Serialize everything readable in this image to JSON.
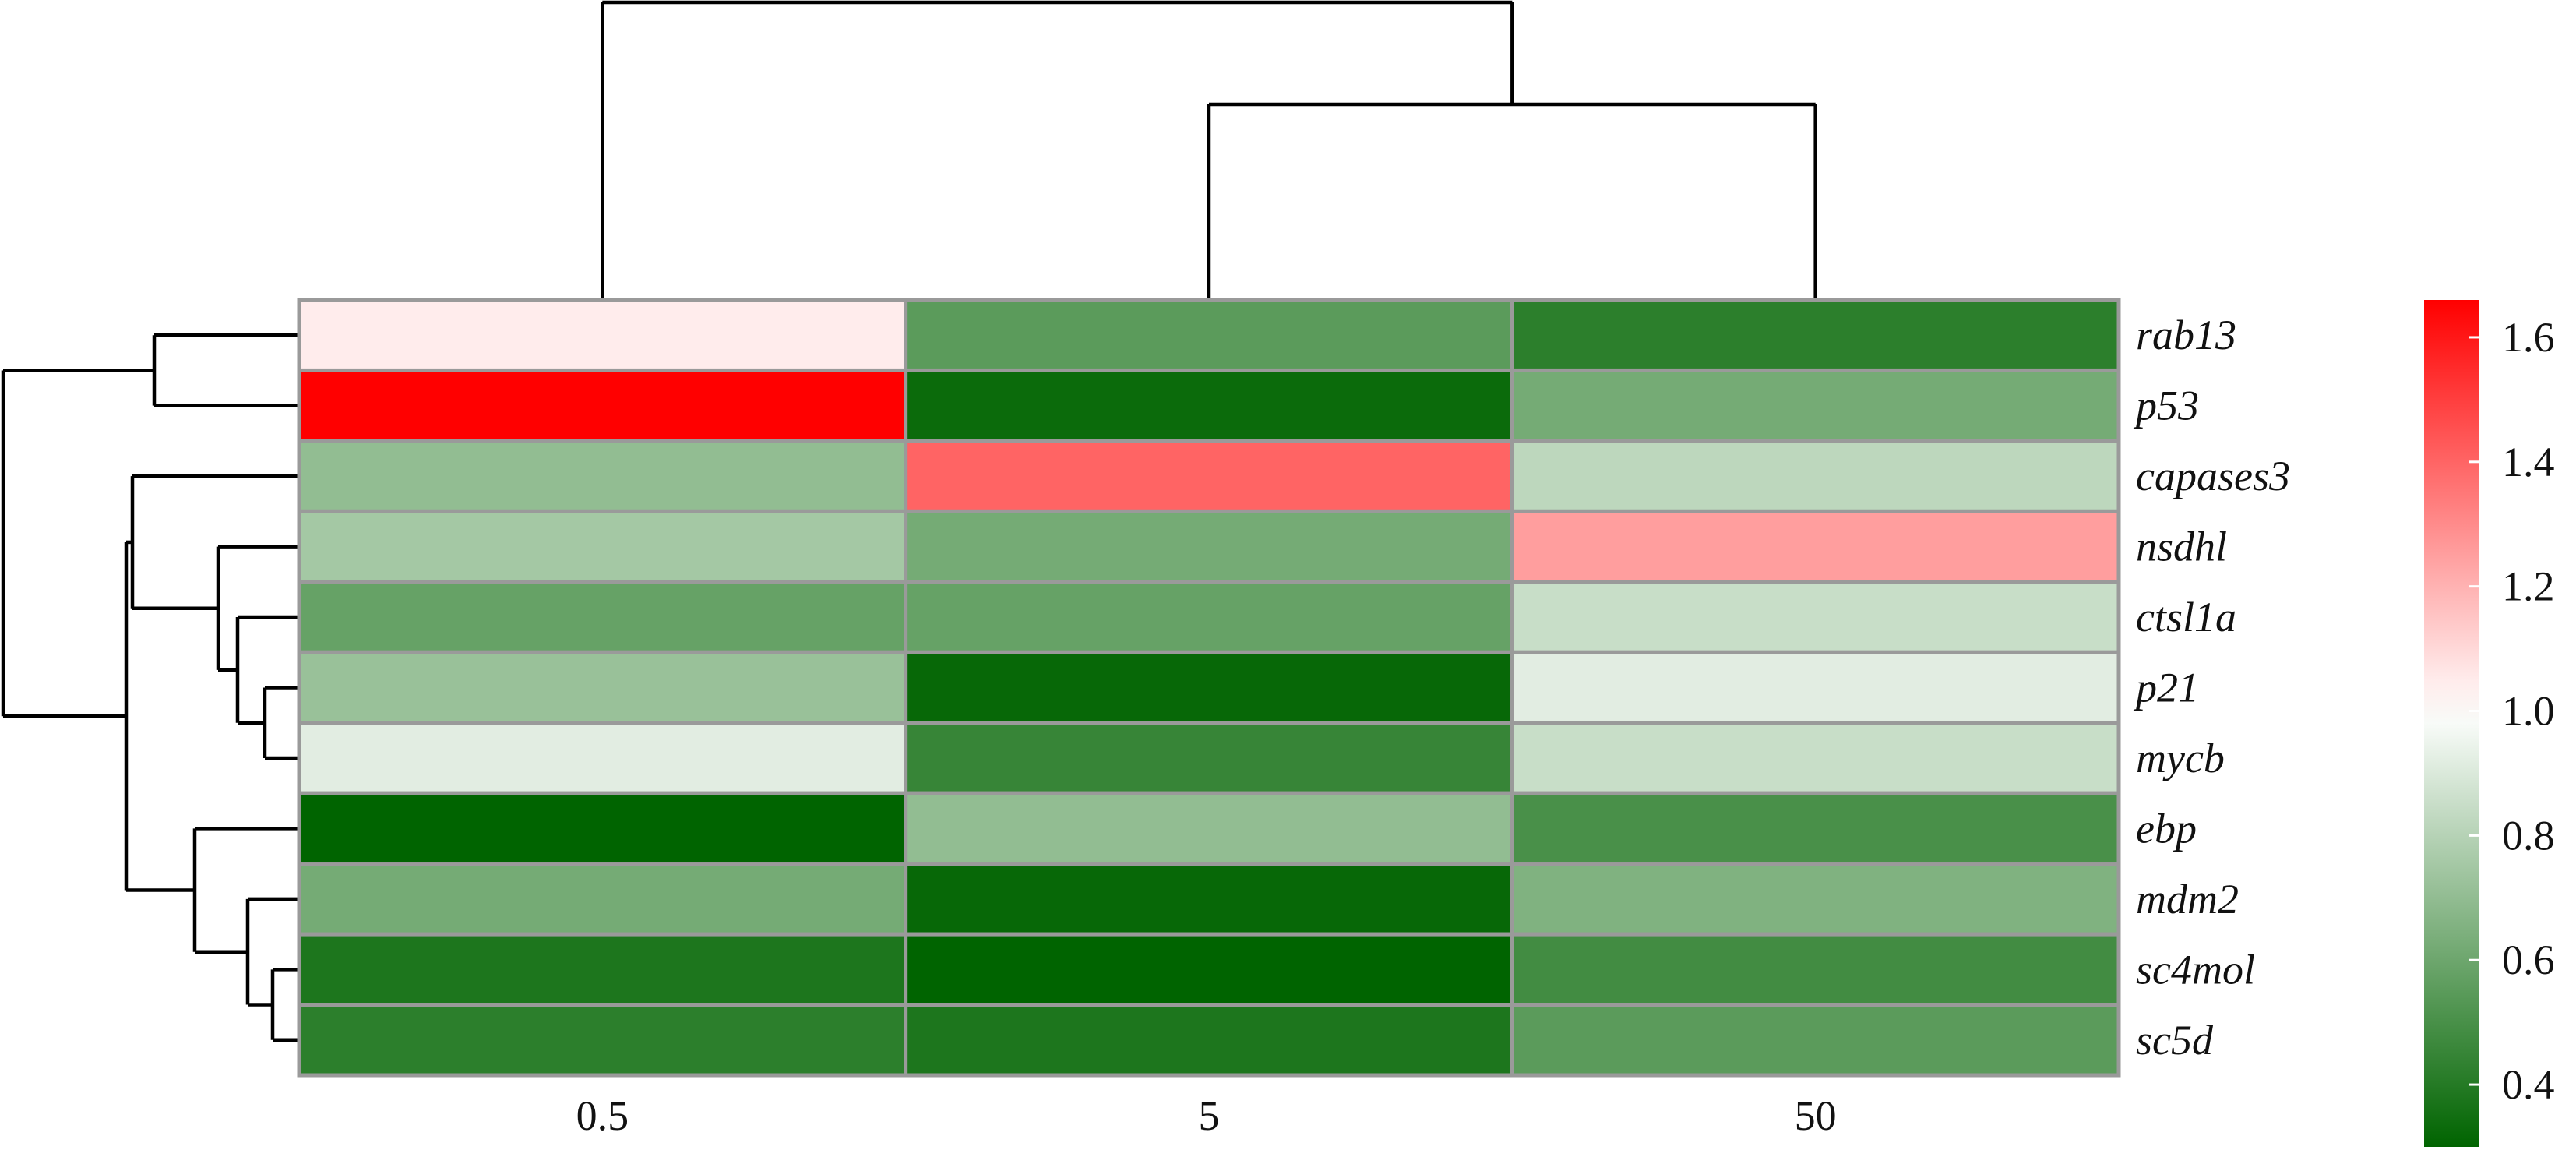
{
  "chart_data": {
    "type": "heatmap",
    "columns": [
      "0.5",
      "5",
      "50"
    ],
    "rows": [
      "rab13",
      "p53",
      "capases3",
      "nsdhl",
      "ctsl1a",
      "p21",
      "mycb",
      "ebp",
      "mdm2",
      "sc4mol",
      "sc5d"
    ],
    "values": [
      [
        1.05,
        0.55,
        0.42
      ],
      [
        1.66,
        0.33,
        0.62
      ],
      [
        0.7,
        1.4,
        0.82
      ],
      [
        0.75,
        0.62,
        1.25
      ],
      [
        0.58,
        0.58,
        0.85
      ],
      [
        0.72,
        0.32,
        0.92
      ],
      [
        0.92,
        0.45,
        0.85
      ],
      [
        0.3,
        0.7,
        0.5
      ],
      [
        0.62,
        0.32,
        0.65
      ],
      [
        0.38,
        0.3,
        0.48
      ],
      [
        0.42,
        0.38,
        0.55
      ]
    ],
    "colorbar": {
      "min": 0.3,
      "max": 1.66,
      "mid": 1.0,
      "ticks": [
        "1.6",
        "1.4",
        "1.2",
        "1.0",
        "0.8",
        "0.6",
        "0.4"
      ],
      "tick_values": [
        1.6,
        1.4,
        1.2,
        1.0,
        0.8,
        0.6,
        0.4
      ],
      "colors": {
        "low": "#006400",
        "mid": "#ffffff",
        "high": "#ff0000"
      }
    },
    "column_dendrogram": "((5,50),0.5)",
    "row_dendrogram": "((rab13,p53),((capases3,(nsdhl,(ctsl1a,(p21,mycb)))),(ebp,(mdm2,(sc4mol,sc5d)))))",
    "xlabel": "",
    "ylabel": ""
  }
}
